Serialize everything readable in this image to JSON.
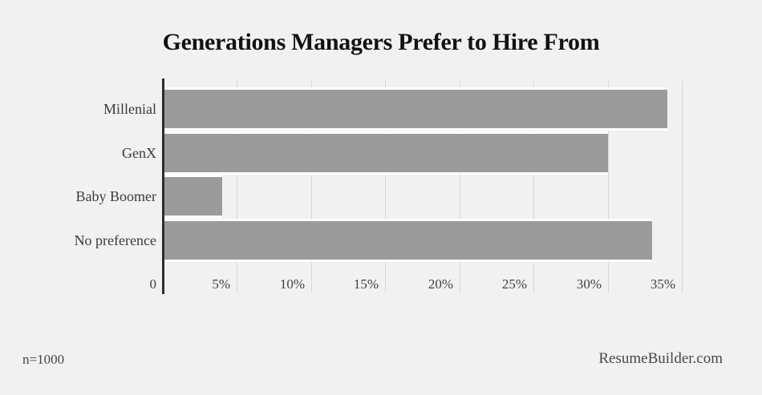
{
  "title": "Generations Managers Prefer to Hire From",
  "footer": {
    "sample_size": "n=1000",
    "source": "ResumeBuilder.com"
  },
  "colors": {
    "background": "#f1f1f1",
    "bar": "#9b9b9b",
    "gridline": "#d8d8d8",
    "axis": "#2d2d2d",
    "title_text": "#121212",
    "label_text": "#3a3a3a",
    "footer_text": "#484848"
  },
  "chart_data": {
    "type": "bar",
    "orientation": "horizontal",
    "title": "Generations Managers Prefer to Hire From",
    "categories": [
      "Millenial",
      "GenX",
      "Baby Boomer",
      "No preference"
    ],
    "values": [
      34,
      30,
      4,
      33
    ],
    "unit": "%",
    "xlabel": "",
    "ylabel": "",
    "xlim": [
      0,
      35
    ],
    "grid": true,
    "legend": "none",
    "ticks": {
      "values": [
        0,
        5,
        10,
        15,
        20,
        25,
        30,
        35
      ],
      "labels": [
        "0",
        "5%",
        "10%",
        "15%",
        "20%",
        "25%",
        "30%",
        "35%"
      ]
    }
  }
}
